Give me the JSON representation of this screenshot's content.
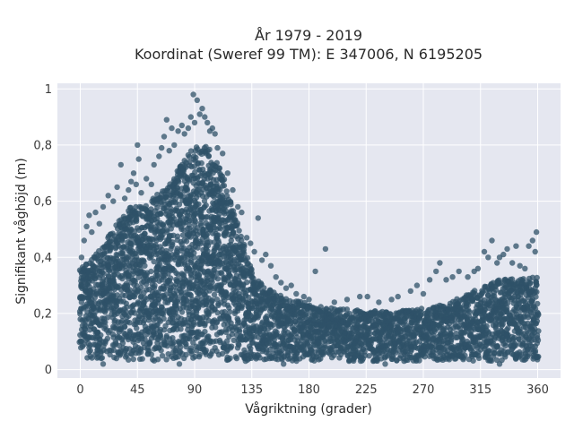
{
  "chart_data": {
    "type": "scatter",
    "title": "År 1979 - 2019",
    "subtitle": "Koordinat (Sweref 99 TM): E 347006, N 6195205",
    "xlabel": "Vågriktning (grader)",
    "ylabel": "Signifikant våghöjd (m)",
    "xlim": [
      -18,
      378
    ],
    "ylim": [
      -0.03,
      1.02
    ],
    "xticks": [
      0,
      45,
      90,
      135,
      180,
      225,
      270,
      315,
      360
    ],
    "xtick_labels": [
      "0",
      "45",
      "90",
      "135",
      "180",
      "225",
      "270",
      "315",
      "360"
    ],
    "yticks": [
      0,
      0.2,
      0.4,
      0.6,
      0.8,
      1
    ],
    "ytick_labels": [
      "0",
      "0,2",
      "0,4",
      "0,6",
      "0,8",
      "1"
    ],
    "grid": true,
    "color": "#2f5168",
    "envelope_upper": [
      [
        0,
        0.36
      ],
      [
        10,
        0.4
      ],
      [
        20,
        0.46
      ],
      [
        30,
        0.53
      ],
      [
        40,
        0.58
      ],
      [
        50,
        0.58
      ],
      [
        60,
        0.62
      ],
      [
        70,
        0.66
      ],
      [
        80,
        0.74
      ],
      [
        90,
        0.8
      ],
      [
        100,
        0.8
      ],
      [
        110,
        0.72
      ],
      [
        120,
        0.58
      ],
      [
        130,
        0.42
      ],
      [
        140,
        0.32
      ],
      [
        150,
        0.28
      ],
      [
        165,
        0.25
      ],
      [
        180,
        0.24
      ],
      [
        200,
        0.22
      ],
      [
        225,
        0.21
      ],
      [
        250,
        0.21
      ],
      [
        270,
        0.22
      ],
      [
        290,
        0.24
      ],
      [
        310,
        0.28
      ],
      [
        330,
        0.32
      ],
      [
        345,
        0.33
      ],
      [
        360,
        0.33
      ]
    ],
    "envelope_lower": [
      [
        0,
        0.04
      ],
      [
        60,
        0.03
      ],
      [
        120,
        0.03
      ],
      [
        180,
        0.03
      ],
      [
        240,
        0.03
      ],
      [
        300,
        0.03
      ],
      [
        360,
        0.03
      ]
    ],
    "outliers": [
      [
        1,
        0.4
      ],
      [
        3,
        0.46
      ],
      [
        5,
        0.51
      ],
      [
        7,
        0.55
      ],
      [
        9,
        0.49
      ],
      [
        12,
        0.56
      ],
      [
        15,
        0.52
      ],
      [
        18,
        0.58
      ],
      [
        22,
        0.62
      ],
      [
        26,
        0.6
      ],
      [
        29,
        0.65
      ],
      [
        32,
        0.73
      ],
      [
        35,
        0.61
      ],
      [
        38,
        0.64
      ],
      [
        40,
        0.67
      ],
      [
        42,
        0.7
      ],
      [
        44,
        0.66
      ],
      [
        45,
        0.8
      ],
      [
        46,
        0.75
      ],
      [
        48,
        0.63
      ],
      [
        52,
        0.68
      ],
      [
        56,
        0.66
      ],
      [
        58,
        0.73
      ],
      [
        62,
        0.76
      ],
      [
        64,
        0.79
      ],
      [
        66,
        0.83
      ],
      [
        68,
        0.89
      ],
      [
        70,
        0.78
      ],
      [
        72,
        0.86
      ],
      [
        74,
        0.8
      ],
      [
        77,
        0.85
      ],
      [
        80,
        0.87
      ],
      [
        82,
        0.84
      ],
      [
        85,
        0.86
      ],
      [
        87,
        0.9
      ],
      [
        89,
        0.98
      ],
      [
        90,
        0.88
      ],
      [
        92,
        0.96
      ],
      [
        94,
        0.91
      ],
      [
        96,
        0.93
      ],
      [
        98,
        0.9
      ],
      [
        100,
        0.88
      ],
      [
        102,
        0.85
      ],
      [
        104,
        0.86
      ],
      [
        106,
        0.84
      ],
      [
        108,
        0.79
      ],
      [
        112,
        0.77
      ],
      [
        116,
        0.7
      ],
      [
        120,
        0.64
      ],
      [
        124,
        0.58
      ],
      [
        127,
        0.56
      ],
      [
        131,
        0.47
      ],
      [
        134,
        0.45
      ],
      [
        137,
        0.42
      ],
      [
        140,
        0.54
      ],
      [
        143,
        0.39
      ],
      [
        146,
        0.41
      ],
      [
        150,
        0.37
      ],
      [
        154,
        0.33
      ],
      [
        158,
        0.31
      ],
      [
        162,
        0.29
      ],
      [
        166,
        0.3
      ],
      [
        170,
        0.27
      ],
      [
        176,
        0.26
      ],
      [
        180,
        0.25
      ],
      [
        185,
        0.35
      ],
      [
        193,
        0.43
      ],
      [
        200,
        0.24
      ],
      [
        210,
        0.25
      ],
      [
        220,
        0.26
      ],
      [
        226,
        0.26
      ],
      [
        235,
        0.24
      ],
      [
        245,
        0.25
      ],
      [
        250,
        0.26
      ],
      [
        260,
        0.28
      ],
      [
        265,
        0.3
      ],
      [
        270,
        0.27
      ],
      [
        275,
        0.32
      ],
      [
        280,
        0.35
      ],
      [
        283,
        0.38
      ],
      [
        288,
        0.32
      ],
      [
        293,
        0.33
      ],
      [
        298,
        0.35
      ],
      [
        305,
        0.33
      ],
      [
        310,
        0.35
      ],
      [
        313,
        0.36
      ],
      [
        318,
        0.42
      ],
      [
        321,
        0.4
      ],
      [
        324,
        0.46
      ],
      [
        328,
        0.38
      ],
      [
        330,
        0.4
      ],
      [
        333,
        0.41
      ],
      [
        336,
        0.43
      ],
      [
        340,
        0.38
      ],
      [
        343,
        0.44
      ],
      [
        346,
        0.37
      ],
      [
        350,
        0.36
      ],
      [
        353,
        0.44
      ],
      [
        356,
        0.46
      ],
      [
        358,
        0.42
      ],
      [
        359,
        0.49
      ],
      [
        18,
        0.02
      ],
      [
        78,
        0.02
      ],
      [
        160,
        0.02
      ],
      [
        240,
        0.02
      ],
      [
        330,
        0.02
      ]
    ],
    "point_count_note": "",
    "legend": null
  }
}
